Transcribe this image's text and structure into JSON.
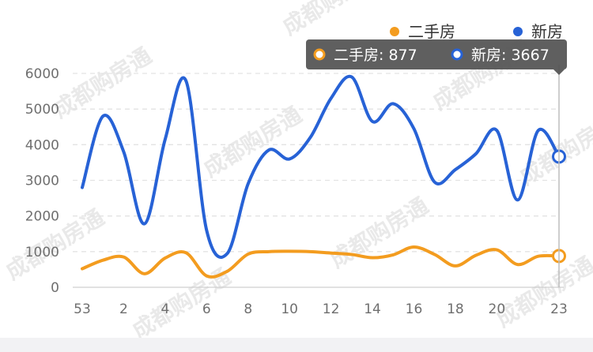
{
  "watermark_text": "成都购房通",
  "chart_data": {
    "type": "line",
    "x_tick_labels": [
      "53",
      "2",
      "4",
      "6",
      "8",
      "10",
      "12",
      "14",
      "16",
      "18",
      "20",
      "23"
    ],
    "x": [
      "53",
      "1",
      "2",
      "3",
      "4",
      "5",
      "6",
      "7",
      "8",
      "9",
      "10",
      "11",
      "12",
      "13",
      "14",
      "15",
      "16",
      "17",
      "18",
      "19",
      "20",
      "21",
      "22",
      "23"
    ],
    "ylim": [
      0,
      6000
    ],
    "y_ticks": [
      0,
      1000,
      2000,
      3000,
      4000,
      5000,
      6000
    ],
    "grid": true,
    "legend_position": "top-right",
    "series": [
      {
        "name": "二手房",
        "color": "#f39c1f",
        "values": [
          520,
          760,
          850,
          380,
          820,
          970,
          320,
          450,
          930,
          1000,
          1010,
          1000,
          960,
          920,
          830,
          910,
          1130,
          920,
          600,
          900,
          1050,
          640,
          870,
          877
        ]
      },
      {
        "name": "新房",
        "color": "#2762d6",
        "values": [
          2800,
          4800,
          3800,
          1780,
          4150,
          5800,
          1600,
          950,
          2900,
          3850,
          3600,
          4200,
          5300,
          5900,
          4650,
          5150,
          4450,
          2950,
          3300,
          3750,
          4400,
          2450,
          4400,
          3667
        ]
      }
    ],
    "tooltip": {
      "items": [
        {
          "label": "二手房: 877",
          "color": "#f39c1f"
        },
        {
          "label": "新房: 3667",
          "color": "#2762d6"
        }
      ]
    }
  }
}
